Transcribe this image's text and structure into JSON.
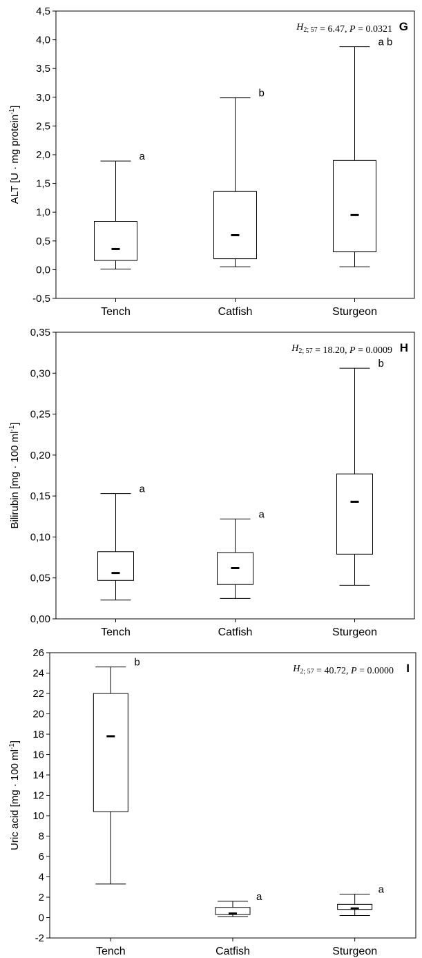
{
  "chart_data": [
    {
      "type": "box",
      "panel": "G",
      "ylabel": "ALT [U · mg protein⁻¹]",
      "stat_text": "H 2; 57 = 6.47, P = 0.0321",
      "ylim": [
        -0.5,
        4.5
      ],
      "yticks": [
        -0.5,
        0.0,
        0.5,
        1.0,
        1.5,
        2.0,
        2.5,
        3.0,
        3.5,
        4.0,
        4.5
      ],
      "ytick_labels": [
        "-0,5",
        "0,0",
        "0,5",
        "1,0",
        "1,5",
        "2,0",
        "2,5",
        "3,0",
        "3,5",
        "4,0",
        "4,5"
      ],
      "categories": [
        "Tench",
        "Catfish",
        "Sturgeon"
      ],
      "boxes": [
        {
          "category": "Tench",
          "whisker_low": 0.01,
          "q1": 0.16,
          "median": 0.36,
          "q3": 0.84,
          "whisker_high": 1.89,
          "letter": "a"
        },
        {
          "category": "Catfish",
          "whisker_low": 0.05,
          "q1": 0.19,
          "median": 0.6,
          "q3": 1.36,
          "whisker_high": 2.99,
          "letter": "b"
        },
        {
          "category": "Sturgeon",
          "whisker_low": 0.05,
          "q1": 0.31,
          "median": 0.95,
          "q3": 1.9,
          "whisker_high": 3.88,
          "letter": "a b"
        }
      ]
    },
    {
      "type": "box",
      "panel": "H",
      "ylabel": "Bilirubin [mg · 100 ml⁻¹]",
      "stat_text": "H 2; 57 = 18.20, P = 0.0009",
      "ylim": [
        0.0,
        0.35
      ],
      "yticks": [
        0.0,
        0.05,
        0.1,
        0.15,
        0.2,
        0.25,
        0.3,
        0.35
      ],
      "ytick_labels": [
        "0,00",
        "0,05",
        "0,10",
        "0,15",
        "0,20",
        "0,25",
        "0,30",
        "0,35"
      ],
      "categories": [
        "Tench",
        "Catfish",
        "Sturgeon"
      ],
      "boxes": [
        {
          "category": "Tench",
          "whisker_low": 0.023,
          "q1": 0.047,
          "median": 0.056,
          "q3": 0.082,
          "whisker_high": 0.153,
          "letter": "a"
        },
        {
          "category": "Catfish",
          "whisker_low": 0.025,
          "q1": 0.042,
          "median": 0.062,
          "q3": 0.081,
          "whisker_high": 0.122,
          "letter": "a"
        },
        {
          "category": "Sturgeon",
          "whisker_low": 0.041,
          "q1": 0.079,
          "median": 0.143,
          "q3": 0.177,
          "whisker_high": 0.306,
          "letter": "b"
        }
      ]
    },
    {
      "type": "box",
      "panel": "I",
      "ylabel": "Uric acid [mg · 100 ml⁻¹]",
      "stat_text": "H 2; 57 = 40.72, P = 0.0000",
      "ylim": [
        -2,
        26
      ],
      "yticks": [
        -2,
        0,
        2,
        4,
        6,
        8,
        10,
        12,
        14,
        16,
        18,
        20,
        22,
        24,
        26
      ],
      "ytick_labels": [
        "-2",
        "0",
        "2",
        "4",
        "6",
        "8",
        "10",
        "12",
        "14",
        "16",
        "18",
        "20",
        "22",
        "24",
        "26"
      ],
      "categories": [
        "Tench",
        "Catfish",
        "Sturgeon"
      ],
      "boxes": [
        {
          "category": "Tench",
          "whisker_low": 3.3,
          "q1": 10.4,
          "median": 17.8,
          "q3": 22.0,
          "whisker_high": 24.6,
          "letter": "b"
        },
        {
          "category": "Catfish",
          "whisker_low": 0.1,
          "q1": 0.3,
          "median": 0.4,
          "q3": 1.0,
          "whisker_high": 1.6,
          "letter": "a"
        },
        {
          "category": "Sturgeon",
          "whisker_low": 0.2,
          "q1": 0.8,
          "median": 0.9,
          "q3": 1.3,
          "whisker_high": 2.3,
          "letter": "a"
        }
      ]
    }
  ]
}
